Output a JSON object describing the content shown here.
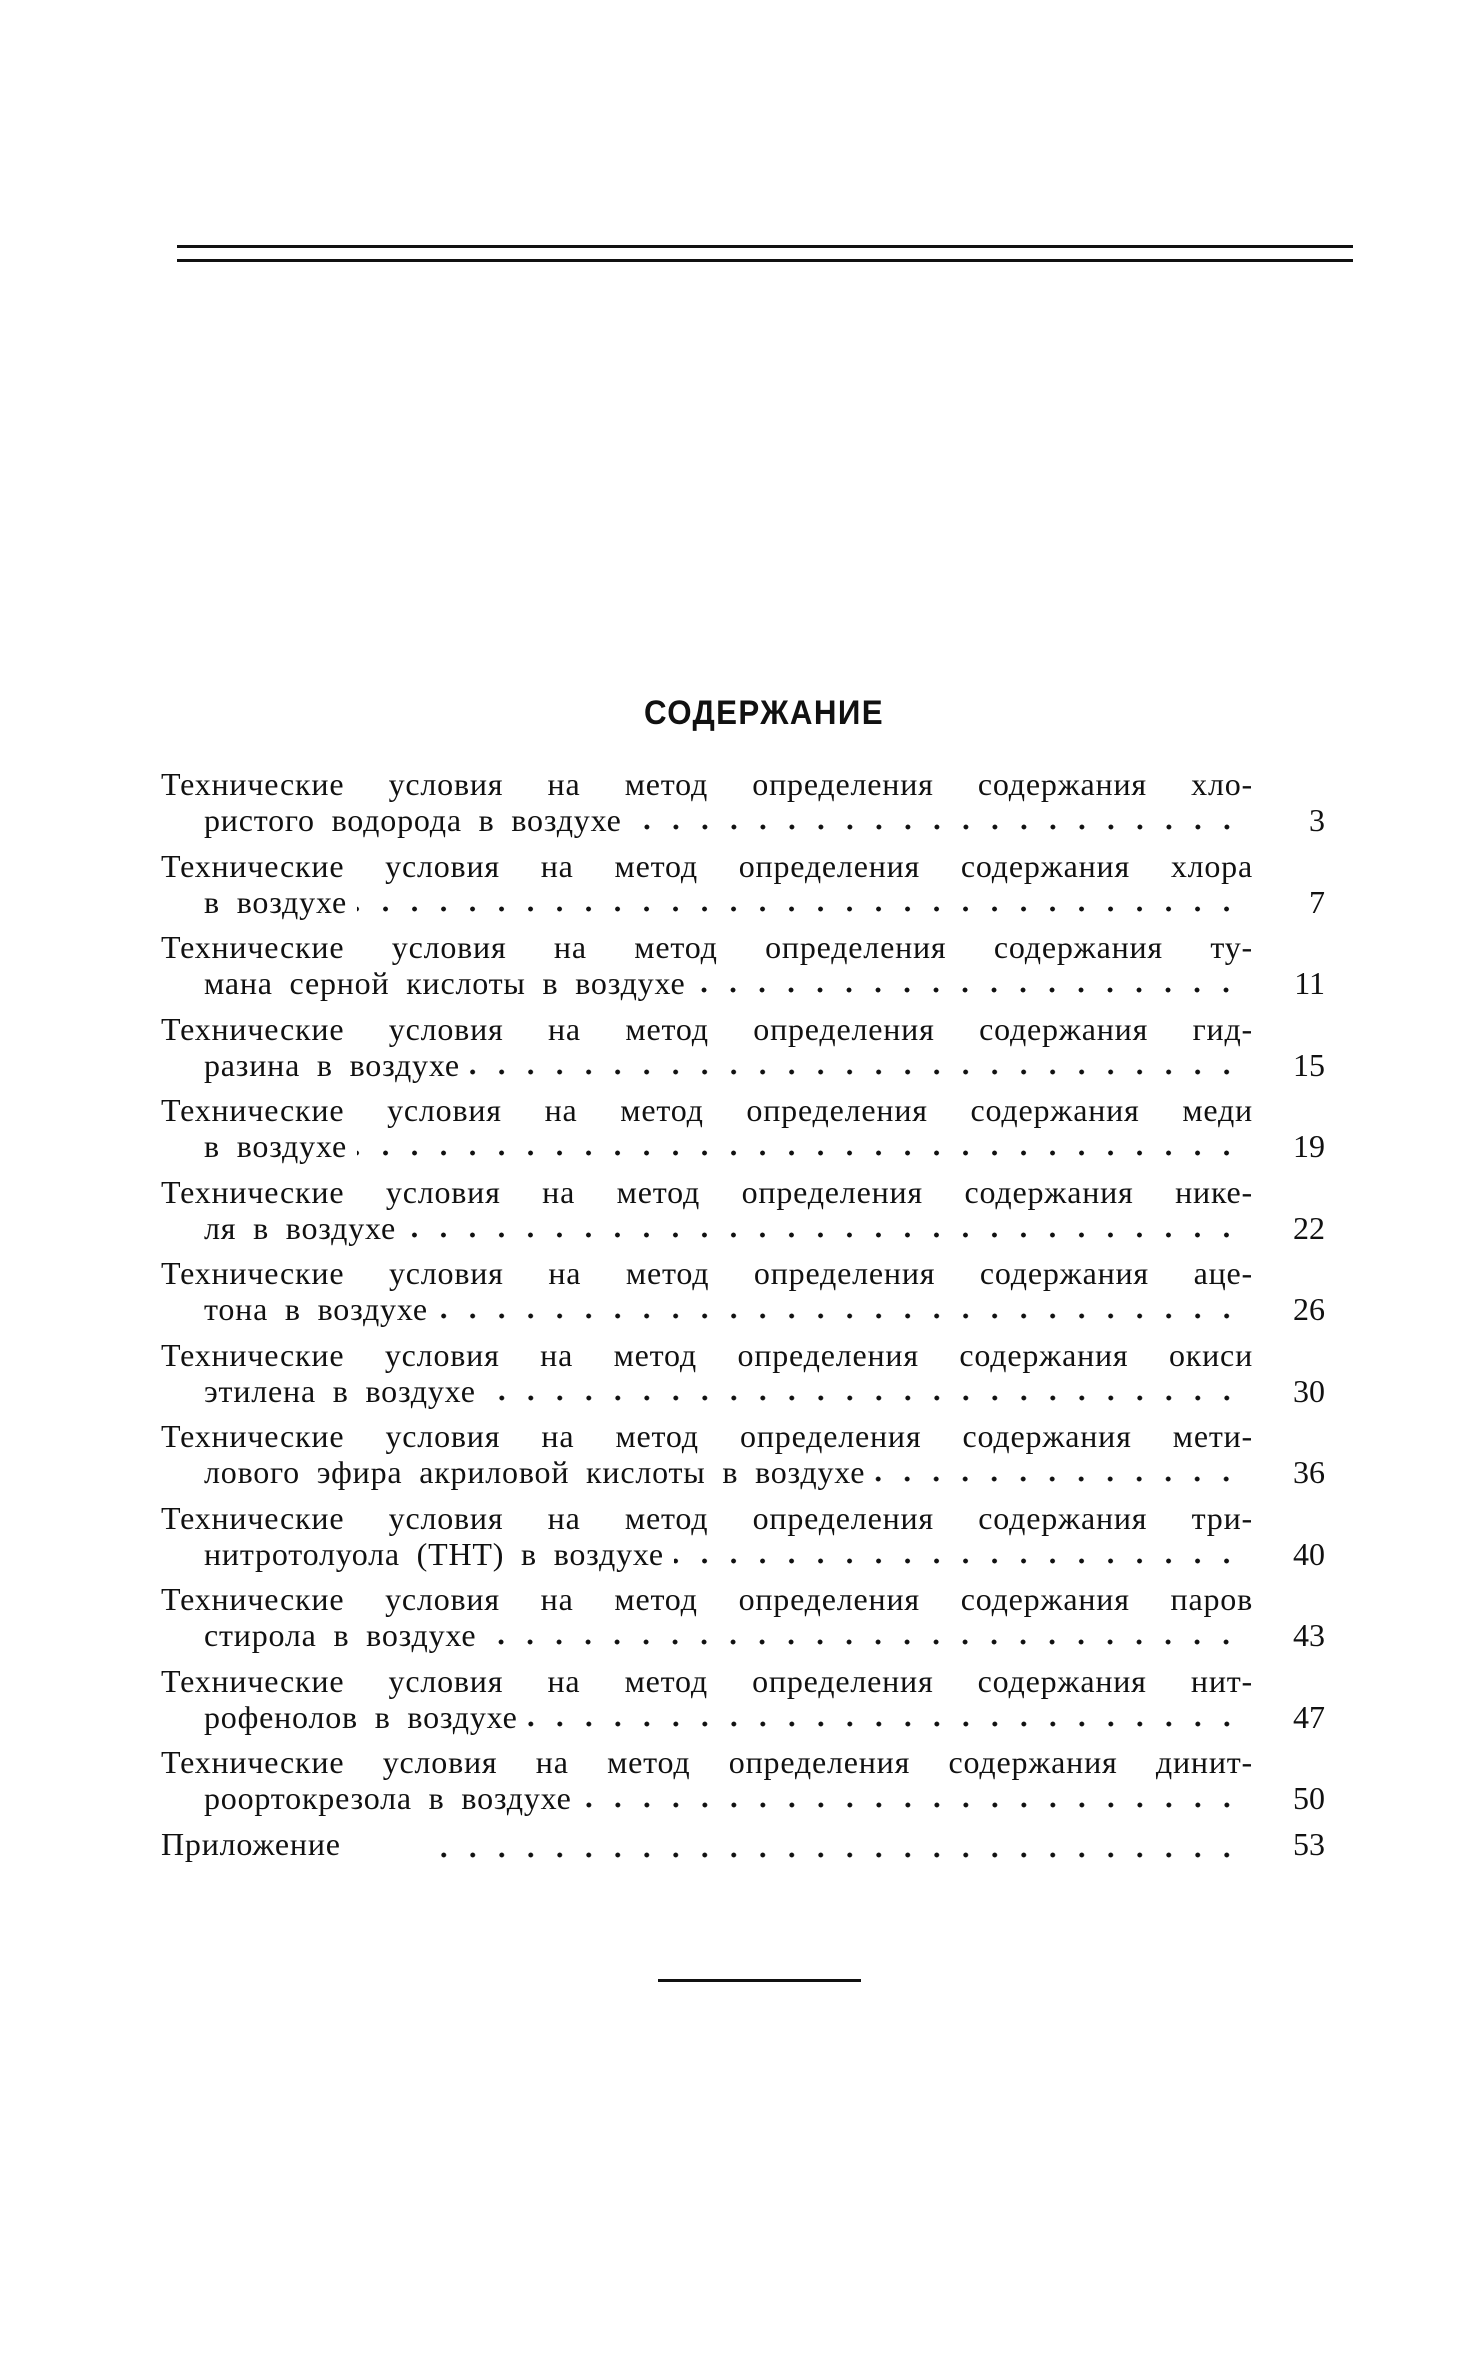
{
  "title": "СОДЕРЖАНИЕ",
  "entries": [
    {
      "line1": "Технические условия на метод определения содержания хло-",
      "line2": "ристого водорода в воздухе",
      "page": "3"
    },
    {
      "line1": "Технические условия на метод определения содержания хлора",
      "line2": "в воздухе",
      "page": "7"
    },
    {
      "line1": "Технические условия на метод определения содержания ту-",
      "line2": "мана серной кислоты в воздухе",
      "page": "11"
    },
    {
      "line1": "Технические условия на метод определения содержания гид-",
      "line2": "разина в воздухе",
      "page": "15"
    },
    {
      "line1": "Технические условия на метод определения содержания меди",
      "line2": "в воздухе",
      "page": "19"
    },
    {
      "line1": "Технические условия на метод определения содержания нике-",
      "line2": "ля в воздухе",
      "page": "22"
    },
    {
      "line1": "Технические условия на метод определения содержания аце-",
      "line2": "тона в воздухе",
      "page": "26"
    },
    {
      "line1": "Технические условия на метод определения содержания окиси",
      "line2": "этилена в воздухе",
      "page": "30"
    },
    {
      "line1": "Технические условия на метод определения содержания мети-",
      "line2": "лового эфира акриловой кислоты в воздухе",
      "page": "36"
    },
    {
      "line1": "Технические условия на метод определения содержания три-",
      "line2": "нитротолуола (ТНТ) в воздухе",
      "page": "40"
    },
    {
      "line1": "Технические условия на метод определения содержания паров",
      "line2": "стирола в воздухе",
      "page": "43"
    },
    {
      "line1": "Технические условия на метод определения содержания нит-",
      "line2": "рофенолов в воздухе",
      "page": "47"
    },
    {
      "line1": "Технические условия на метод определения содержания динит-",
      "line2": "роортокрезола в воздухе",
      "page": "50"
    }
  ],
  "appendix": {
    "label": "Приложение",
    "page": "53"
  }
}
